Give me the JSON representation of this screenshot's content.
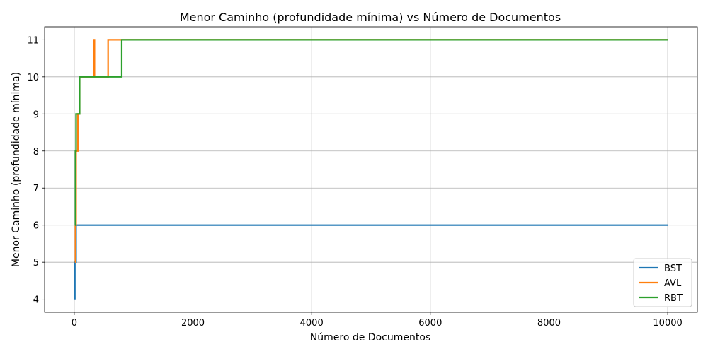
{
  "chart_data": {
    "type": "line",
    "title": "Menor Caminho (profundidade mínima) vs Número de Documentos",
    "xlabel": "Número de Documentos",
    "ylabel": "Menor Caminho (profundidade mínima)",
    "xlim": [
      -500,
      10500
    ],
    "ylim": [
      3.65,
      11.35
    ],
    "xticks": [
      0,
      2000,
      4000,
      6000,
      8000,
      10000
    ],
    "xtick_labels": [
      "0",
      "2000",
      "4000",
      "6000",
      "8000",
      "10000"
    ],
    "yticks": [
      4,
      5,
      6,
      7,
      8,
      9,
      10,
      11
    ],
    "ytick_labels": [
      "4",
      "5",
      "6",
      "7",
      "8",
      "9",
      "10",
      "11"
    ],
    "grid": true,
    "legend_position": "lower-right",
    "series": [
      {
        "name": "BST",
        "color": "#1f77b4",
        "step": true,
        "x": [
          1,
          10,
          30,
          10000
        ],
        "y": [
          4,
          5,
          6,
          6
        ]
      },
      {
        "name": "AVL",
        "color": "#ff7f0e",
        "step": true,
        "x": [
          10,
          20,
          30,
          60,
          90,
          330,
          340,
          570,
          580,
          10000
        ],
        "y": [
          5,
          6,
          8,
          9,
          10,
          11,
          10,
          11,
          11,
          11
        ]
      },
      {
        "name": "RBT",
        "color": "#2ca02c",
        "step": true,
        "x": [
          10,
          20,
          30,
          60,
          90,
          800,
          10000
        ],
        "y": [
          6,
          8,
          9,
          9,
          10,
          11,
          11
        ]
      }
    ]
  }
}
